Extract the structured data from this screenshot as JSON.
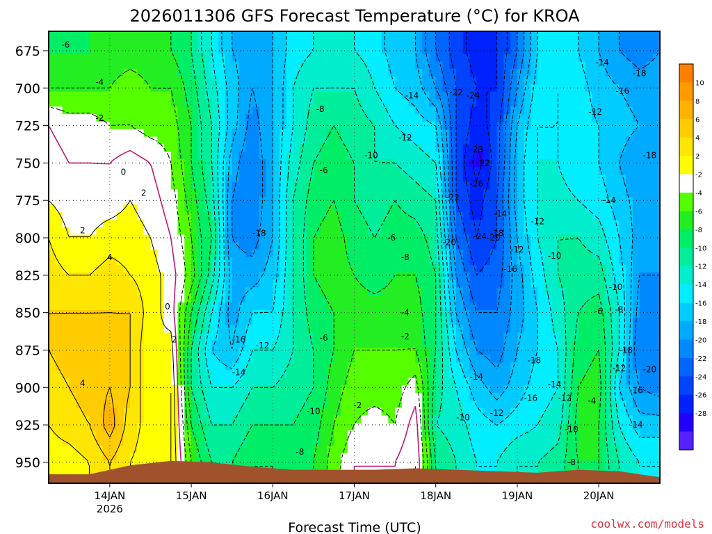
{
  "chart_data": {
    "type": "heatmap",
    "title": "2026011306 GFS Forecast Temperature (°C) for KROA",
    "xlabel": "Forecast Time (UTC)",
    "ylabel": "",
    "y_axis_label_values": [
      "675",
      "700",
      "725",
      "750",
      "775",
      "800",
      "825",
      "850",
      "875",
      "900",
      "925",
      "950"
    ],
    "y_axis_pressure": [
      675,
      700,
      725,
      750,
      775,
      800,
      825,
      850,
      875,
      900,
      925,
      950
    ],
    "ylim": [
      662,
      964
    ],
    "x_ticks": [
      {
        "label": "14JAN",
        "sub": "2026",
        "hour": 18
      },
      {
        "label": "15JAN",
        "sub": "",
        "hour": 42
      },
      {
        "label": "16JAN",
        "sub": "",
        "hour": 66
      },
      {
        "label": "17JAN",
        "sub": "",
        "hour": 90
      },
      {
        "label": "18JAN",
        "sub": "",
        "hour": 114
      },
      {
        "label": "19JAN",
        "sub": "",
        "hour": 138
      },
      {
        "label": "20JAN",
        "sub": "",
        "hour": 162
      }
    ],
    "xlim_hours": [
      0,
      180
    ],
    "colorbar": {
      "tick_labels": [
        "10",
        "8",
        "6",
        "4",
        "2",
        "-2",
        "-4",
        "-6",
        "-8",
        "-10",
        "-12",
        "-14",
        "-16",
        "-18",
        "-20",
        "-22",
        "-24",
        "-26",
        "-28"
      ],
      "colors": [
        "#ff8000",
        "#ff9a00",
        "#ffb300",
        "#ffcc00",
        "#ffe600",
        "#ffff00",
        "#ffffff",
        "#55ff00",
        "#22ee22",
        "#00ee66",
        "#00ee99",
        "#00eecc",
        "#00eeff",
        "#00ccff",
        "#00aaff",
        "#0088ff",
        "#0066ff",
        "#0044ff",
        "#0022ff",
        "#2200ff",
        "#5522ff"
      ]
    },
    "profiles": [
      {
        "hour": 0,
        "temps": [
          -6,
          -4,
          0,
          1,
          2,
          4,
          5,
          6,
          6,
          5,
          4,
          3
        ]
      },
      {
        "hour": 6,
        "temps": [
          -6,
          -4,
          -1,
          0,
          1,
          2,
          4,
          6,
          7,
          6,
          5,
          3
        ]
      },
      {
        "hour": 12,
        "temps": [
          -6,
          -4,
          -1,
          0,
          1,
          2,
          4,
          6,
          7,
          7,
          6,
          4
        ]
      },
      {
        "hour": 18,
        "temps": [
          -5,
          -4,
          -2,
          0,
          1,
          3,
          5,
          6,
          7,
          8,
          9,
          6
        ]
      },
      {
        "hour": 24,
        "temps": [
          -5,
          -3,
          -2,
          1,
          2,
          3,
          4,
          6,
          6,
          6,
          5,
          4
        ]
      },
      {
        "hour": 30,
        "temps": [
          -5,
          -4,
          -3,
          0,
          1,
          2,
          3,
          3,
          2,
          2,
          3,
          3
        ]
      },
      {
        "hour": 36,
        "temps": [
          -6,
          -4,
          -3,
          -2,
          -1,
          0,
          1,
          1,
          3,
          4,
          4,
          4
        ]
      },
      {
        "hour": 42,
        "temps": [
          -8,
          -7,
          -6,
          -6,
          -5,
          -4,
          -3,
          -6,
          -8,
          -8,
          -6,
          -4
        ]
      },
      {
        "hour": 48,
        "temps": [
          -12,
          -11,
          -10,
          -10,
          -9,
          -8,
          -9,
          -12,
          -14,
          -12,
          -10,
          -8
        ]
      },
      {
        "hour": 54,
        "temps": [
          -16,
          -15,
          -15,
          -17,
          -18,
          -18,
          -17,
          -17,
          -16,
          -12,
          -10,
          -8
        ]
      },
      {
        "hour": 60,
        "temps": [
          -17,
          -18,
          -19,
          -20,
          -20,
          -19,
          -17,
          -14,
          -12,
          -10,
          -8,
          -6
        ]
      },
      {
        "hour": 66,
        "temps": [
          -16,
          -16,
          -16,
          -16,
          -16,
          -16,
          -15,
          -14,
          -12,
          -10,
          -8,
          -6
        ]
      },
      {
        "hour": 72,
        "temps": [
          -13,
          -12,
          -12,
          -11,
          -10,
          -10,
          -10,
          -10,
          -10,
          -9,
          -8,
          -7
        ]
      },
      {
        "hour": 78,
        "temps": [
          -12,
          -10,
          -9,
          -8,
          -7,
          -6,
          -6,
          -7,
          -8,
          -8,
          -7,
          -6
        ]
      },
      {
        "hour": 84,
        "temps": [
          -11,
          -10,
          -8,
          -7,
          -6,
          -5,
          -5,
          -6,
          -6,
          -5,
          -4,
          -3
        ]
      },
      {
        "hour": 90,
        "temps": [
          -12,
          -10,
          -9,
          -8,
          -8,
          -7,
          -6,
          -5,
          -4,
          -3,
          -2,
          0
        ]
      },
      {
        "hour": 96,
        "temps": [
          -13,
          -12,
          -10,
          -10,
          -9,
          -8,
          -7,
          -5,
          -4,
          -3,
          -1,
          0
        ]
      },
      {
        "hour": 102,
        "temps": [
          -15,
          -14,
          -12,
          -10,
          -8,
          -7,
          -6,
          -5,
          -4,
          -3,
          -2,
          0
        ]
      },
      {
        "hour": 108,
        "temps": [
          -16,
          -15,
          -13,
          -11,
          -9,
          -7,
          -6,
          -5,
          -4,
          -1,
          1,
          2
        ]
      },
      {
        "hour": 114,
        "temps": [
          -20,
          -18,
          -14,
          -12,
          -10,
          -9,
          -8,
          -8,
          -8,
          -9,
          -10,
          -8
        ]
      },
      {
        "hour": 120,
        "temps": [
          -23,
          -22,
          -22,
          -22,
          -22,
          -20,
          -18,
          -16,
          -14,
          -12,
          -11,
          -10
        ]
      },
      {
        "hour": 126,
        "temps": [
          -25,
          -24,
          -25,
          -27,
          -25,
          -24,
          -22,
          -20,
          -18,
          -15,
          -13,
          -12
        ]
      },
      {
        "hour": 132,
        "temps": [
          -24,
          -24,
          -23,
          -23,
          -22,
          -22,
          -21,
          -20,
          -19,
          -17,
          -14,
          -12
        ]
      },
      {
        "hour": 138,
        "temps": [
          -20,
          -18,
          -16,
          -15,
          -15,
          -16,
          -17,
          -17,
          -16,
          -15,
          -13,
          -10
        ]
      },
      {
        "hour": 144,
        "temps": [
          -14,
          -13,
          -12,
          -12,
          -12,
          -12,
          -13,
          -14,
          -14,
          -13,
          -12,
          -10
        ]
      },
      {
        "hour": 150,
        "temps": [
          -13,
          -12,
          -12,
          -12,
          -11,
          -10,
          -10,
          -11,
          -12,
          -12,
          -11,
          -9
        ]
      },
      {
        "hour": 156,
        "temps": [
          -14,
          -13,
          -13,
          -14,
          -12,
          -10,
          -9,
          -8,
          -7,
          -6,
          -5,
          -6
        ]
      },
      {
        "hour": 162,
        "temps": [
          -16,
          -15,
          -14,
          -14,
          -13,
          -11,
          -9,
          -7,
          -6,
          -5,
          -6,
          -6
        ]
      },
      {
        "hour": 168,
        "temps": [
          -18,
          -16,
          -15,
          -16,
          -15,
          -14,
          -13,
          -12,
          -12,
          -14,
          -12,
          -10
        ]
      },
      {
        "hour": 174,
        "temps": [
          -19,
          -17,
          -16,
          -18,
          -17,
          -17,
          -18,
          -19,
          -20,
          -18,
          -15,
          -12
        ]
      },
      {
        "hour": 180,
        "temps": [
          -18,
          -17,
          -16,
          -18,
          -17,
          -17,
          -18,
          -19,
          -20,
          -19,
          -15,
          -12
        ]
      }
    ],
    "surface_pressure": [
      {
        "hour": 0,
        "p": 958
      },
      {
        "hour": 12,
        "p": 958
      },
      {
        "hour": 24,
        "p": 952
      },
      {
        "hour": 36,
        "p": 949
      },
      {
        "hour": 48,
        "p": 950
      },
      {
        "hour": 60,
        "p": 953
      },
      {
        "hour": 72,
        "p": 955
      },
      {
        "hour": 84,
        "p": 955
      },
      {
        "hour": 96,
        "p": 955
      },
      {
        "hour": 108,
        "p": 954
      },
      {
        "hour": 120,
        "p": 955
      },
      {
        "hour": 132,
        "p": 956
      },
      {
        "hour": 144,
        "p": 957
      },
      {
        "hour": 156,
        "p": 955
      },
      {
        "hour": 168,
        "p": 956
      },
      {
        "hour": 180,
        "p": 960
      }
    ],
    "contour_labels": [
      {
        "text": "-6",
        "hour": 5,
        "p": 671
      },
      {
        "text": "-4",
        "hour": 15,
        "p": 696
      },
      {
        "text": "-2",
        "hour": 15,
        "p": 720
      },
      {
        "text": "0",
        "hour": 22,
        "p": 756
      },
      {
        "text": "2",
        "hour": 28,
        "p": 770
      },
      {
        "text": "2",
        "hour": 10,
        "p": 795
      },
      {
        "text": "4",
        "hour": 18,
        "p": 813
      },
      {
        "text": "0",
        "hour": 35,
        "p": 846
      },
      {
        "text": "2",
        "hour": 37,
        "p": 868
      },
      {
        "text": "4",
        "hour": 10,
        "p": 897
      },
      {
        "text": "-18",
        "hour": 62,
        "p": 797
      },
      {
        "text": "-16",
        "hour": 56,
        "p": 868
      },
      {
        "text": "-12",
        "hour": 63,
        "p": 872
      },
      {
        "text": "-14",
        "hour": 56,
        "p": 890
      },
      {
        "text": "-8",
        "hour": 80,
        "p": 714
      },
      {
        "text": "-6",
        "hour": 81,
        "p": 755
      },
      {
        "text": "-10",
        "hour": 95,
        "p": 745
      },
      {
        "text": "-12",
        "hour": 105,
        "p": 733
      },
      {
        "text": "-14",
        "hour": 107,
        "p": 705
      },
      {
        "text": "-6",
        "hour": 101,
        "p": 800
      },
      {
        "text": "-8",
        "hour": 105,
        "p": 813
      },
      {
        "text": "-4",
        "hour": 105,
        "p": 850
      },
      {
        "text": "-2",
        "hour": 105,
        "p": 866
      },
      {
        "text": "-6",
        "hour": 81,
        "p": 867
      },
      {
        "text": "-2",
        "hour": 91,
        "p": 912
      },
      {
        "text": "-10",
        "hour": 78,
        "p": 916
      },
      {
        "text": "-8",
        "hour": 74,
        "p": 943
      },
      {
        "text": "-22",
        "hour": 120,
        "p": 703
      },
      {
        "text": "-24",
        "hour": 125,
        "p": 705
      },
      {
        "text": "-23",
        "hour": 126,
        "p": 741
      },
      {
        "text": "-22",
        "hour": 128,
        "p": 750
      },
      {
        "text": "-26",
        "hour": 126,
        "p": 764
      },
      {
        "text": "-22",
        "hour": 119,
        "p": 773
      },
      {
        "text": "-24",
        "hour": 127,
        "p": 799
      },
      {
        "text": "-18",
        "hour": 132,
        "p": 797
      },
      {
        "text": "-14",
        "hour": 133,
        "p": 784
      },
      {
        "text": "-20",
        "hour": 118,
        "p": 803
      },
      {
        "text": "-20",
        "hour": 131,
        "p": 800
      },
      {
        "text": "-16",
        "hour": 136,
        "p": 821
      },
      {
        "text": "-12",
        "hour": 144,
        "p": 789
      },
      {
        "text": "-12",
        "hour": 138,
        "p": 808
      },
      {
        "text": "-10",
        "hour": 149,
        "p": 812
      },
      {
        "text": "-14",
        "hour": 163,
        "p": 683
      },
      {
        "text": "-18",
        "hour": 174,
        "p": 690
      },
      {
        "text": "-16",
        "hour": 169,
        "p": 702
      },
      {
        "text": "-12",
        "hour": 161,
        "p": 716
      },
      {
        "text": "-18",
        "hour": 177,
        "p": 745
      },
      {
        "text": "-14",
        "hour": 165,
        "p": 775
      },
      {
        "text": "-10",
        "hour": 167,
        "p": 833
      },
      {
        "text": "-6",
        "hour": 162,
        "p": 849
      },
      {
        "text": "-8",
        "hour": 168,
        "p": 848
      },
      {
        "text": "-18",
        "hour": 170,
        "p": 875
      },
      {
        "text": "-12",
        "hour": 168,
        "p": 887
      },
      {
        "text": "-20",
        "hour": 177,
        "p": 888
      },
      {
        "text": "-16",
        "hour": 173,
        "p": 902
      },
      {
        "text": "-14",
        "hour": 173,
        "p": 925
      },
      {
        "text": "-18",
        "hour": 143,
        "p": 882
      },
      {
        "text": "-14",
        "hour": 126,
        "p": 893
      },
      {
        "text": "-16",
        "hour": 142,
        "p": 907
      },
      {
        "text": "-14",
        "hour": 149,
        "p": 898
      },
      {
        "text": "-12",
        "hour": 152,
        "p": 907
      },
      {
        "text": "-4",
        "hour": 160,
        "p": 909
      },
      {
        "text": "-12",
        "hour": 132,
        "p": 917
      },
      {
        "text": "-10",
        "hour": 122,
        "p": 920
      },
      {
        "text": "-10",
        "hour": 154,
        "p": 928
      },
      {
        "text": "-8",
        "hour": 154,
        "p": 950
      }
    ]
  },
  "credit": "coolwx.com/models"
}
